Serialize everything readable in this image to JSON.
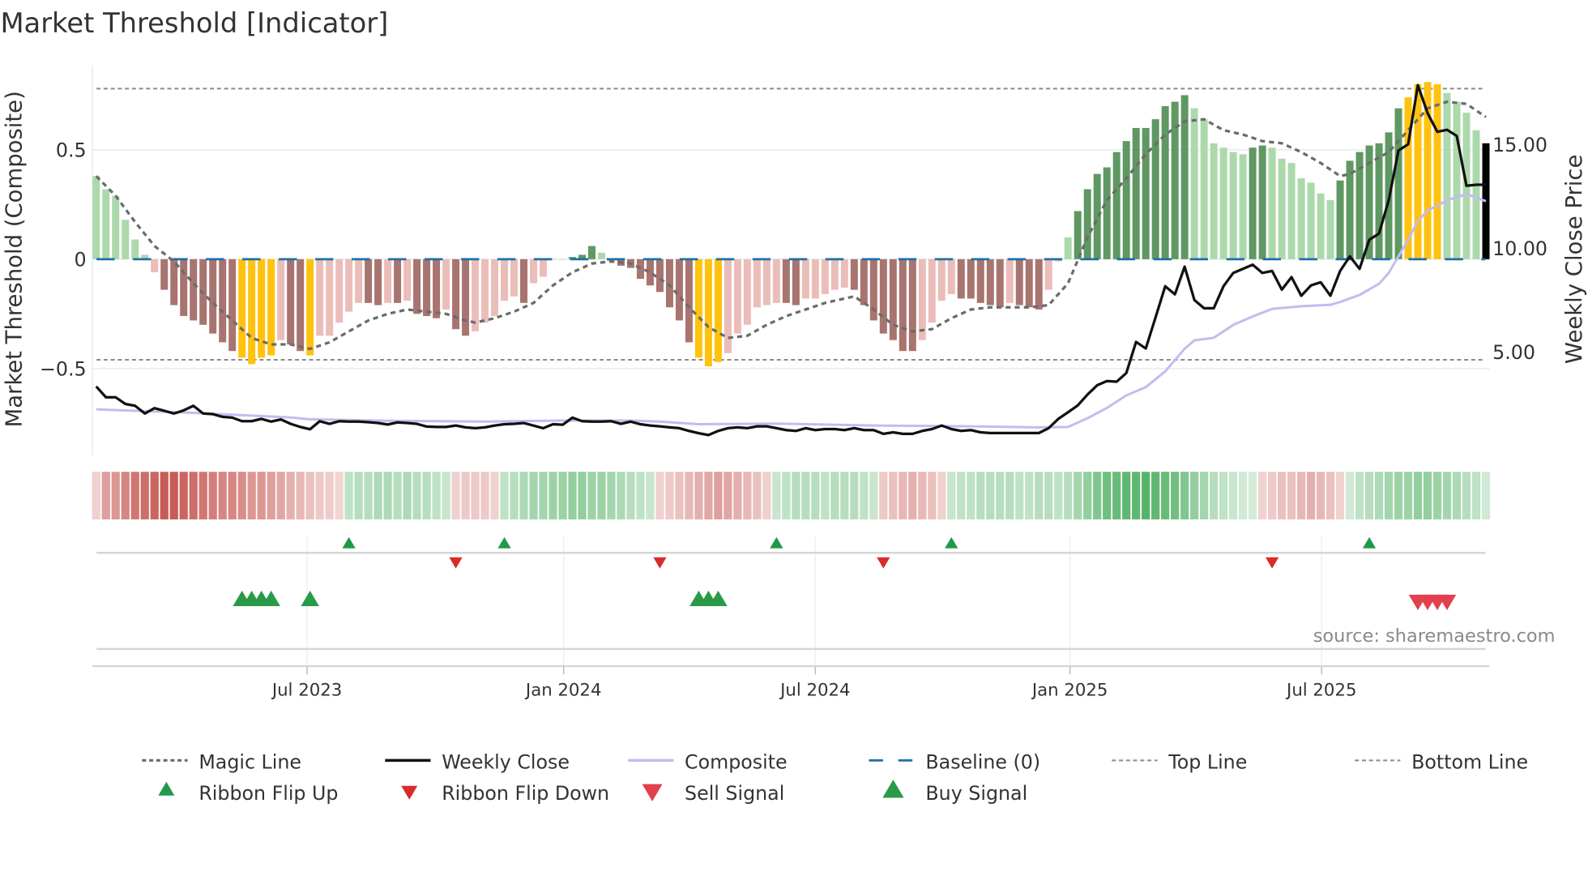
{
  "title": "Market Threshold [Indicator]",
  "source": "source: sharemaestro.com",
  "colors": {
    "lg": "#acd9ac",
    "dg": "#5f9862",
    "lr": "#ebbdb9",
    "dr": "#a8746f",
    "y": "#ffc20e",
    "magic": "#6b6b6b",
    "close": "#111111",
    "composite": "#c3bcee",
    "baseline": "#1f6fa8",
    "ribbon_red": "#c4504a",
    "ribbon_green": "#4aad5d",
    "flip_up": "#1f9a48",
    "flip_down": "#d92b2b",
    "sell": "#e2404f",
    "buy": "#2a9a48"
  },
  "chart_data": {
    "type": "bar",
    "title": "Market Threshold [Indicator]",
    "ylabel": "Market Threshold (Composite)",
    "y2label": "Weekly Close Price",
    "ylim": [
      -0.95,
      0.9
    ],
    "y2lim": [
      0,
      18
    ],
    "yticks": [
      {
        "v": 0.5,
        "label": "0.5"
      },
      {
        "v": 0,
        "label": "0"
      },
      {
        "v": -0.5,
        "label": "−0.5"
      }
    ],
    "y2ticks": [
      {
        "v": 15,
        "label": "15.00"
      },
      {
        "v": 10,
        "label": "10.00"
      },
      {
        "v": 5,
        "label": "5.00"
      }
    ],
    "x_unit": "week index",
    "xticks": [
      {
        "week": 21.7,
        "label": "Jul 2023"
      },
      {
        "week": 48.1,
        "label": "Jan 2024"
      },
      {
        "week": 74.0,
        "label": "Jul 2024"
      },
      {
        "week": 100.2,
        "label": "Jan 2025"
      },
      {
        "week": 126.1,
        "label": "Jul 2025"
      }
    ],
    "top_line": 0.78,
    "bottom_line": -0.46,
    "baseline": 0,
    "composite_bars": [
      0.38,
      0.32,
      0.29,
      0.18,
      0.09,
      0.02,
      -0.06,
      -0.14,
      -0.21,
      -0.26,
      -0.28,
      -0.3,
      -0.34,
      -0.38,
      -0.42,
      -0.45,
      -0.48,
      -0.45,
      -0.44,
      -0.37,
      -0.39,
      -0.42,
      -0.44,
      -0.35,
      -0.35,
      -0.29,
      -0.24,
      -0.2,
      -0.2,
      -0.21,
      -0.2,
      -0.2,
      -0.19,
      -0.25,
      -0.26,
      -0.27,
      -0.23,
      -0.32,
      -0.35,
      -0.33,
      -0.29,
      -0.26,
      -0.19,
      -0.17,
      -0.2,
      -0.11,
      -0.08,
      0,
      0,
      0.01,
      0.02,
      0.06,
      0.03,
      -0.01,
      -0.03,
      -0.04,
      -0.09,
      -0.12,
      -0.15,
      -0.22,
      -0.28,
      -0.38,
      -0.45,
      -0.49,
      -0.47,
      -0.43,
      -0.34,
      -0.3,
      -0.22,
      -0.21,
      -0.2,
      -0.2,
      -0.21,
      -0.18,
      -0.18,
      -0.16,
      -0.14,
      -0.13,
      -0.14,
      -0.21,
      -0.28,
      -0.34,
      -0.37,
      -0.42,
      -0.42,
      -0.37,
      -0.29,
      -0.19,
      -0.16,
      -0.18,
      -0.18,
      -0.2,
      -0.21,
      -0.22,
      -0.2,
      -0.21,
      -0.22,
      -0.23,
      -0.14,
      -0.01,
      0.1,
      0.22,
      0.32,
      0.39,
      0.42,
      0.49,
      0.54,
      0.6,
      0.6,
      0.64,
      0.7,
      0.72,
      0.75,
      0.69,
      0.64,
      0.53,
      0.51,
      0.49,
      0.48,
      0.51,
      0.52,
      0.51,
      0.46,
      0.44,
      0.37,
      0.35,
      0.3,
      0.27,
      0.36,
      0.45,
      0.49,
      0.52,
      0.53,
      0.58,
      0.69,
      0.74,
      0.8,
      0.81,
      0.8,
      0.76,
      0.72,
      0.67,
      0.59,
      0.53
    ],
    "bar_states": [
      "lg",
      "lg",
      "lg",
      "lg",
      "lg",
      "lg",
      "lr",
      "dr",
      "dr",
      "dr",
      "dr",
      "dr",
      "dr",
      "dr",
      "dr",
      "y",
      "y",
      "y",
      "y",
      "lr",
      "dr",
      "dr",
      "y",
      "lr",
      "lr",
      "lr",
      "lr",
      "lr",
      "dr",
      "dr",
      "lr",
      "dr",
      "lr",
      "dr",
      "dr",
      "dr",
      "lr",
      "dr",
      "dr",
      "lr",
      "lr",
      "lr",
      "lr",
      "lr",
      "dr",
      "lr",
      "lr",
      "lr",
      "lr",
      "dg",
      "dg",
      "dg",
      "lg",
      "lr",
      "dr",
      "dr",
      "dr",
      "dr",
      "dr",
      "dr",
      "dr",
      "dr",
      "y",
      "y",
      "y",
      "lr",
      "lr",
      "lr",
      "lr",
      "lr",
      "lr",
      "dr",
      "dr",
      "lr",
      "lr",
      "lr",
      "lr",
      "lr",
      "dr",
      "dr",
      "dr",
      "dr",
      "dr",
      "dr",
      "dr",
      "lr",
      "lr",
      "lr",
      "lr",
      "dr",
      "dr",
      "dr",
      "dr",
      "dr",
      "lr",
      "dr",
      "dr",
      "dr",
      "lr",
      "lr",
      "lg",
      "dg",
      "dg",
      "dg",
      "dg",
      "dg",
      "dg",
      "dg",
      "dg",
      "dg",
      "dg",
      "dg",
      "dg",
      "lg",
      "lg",
      "lg",
      "lg",
      "lg",
      "lg",
      "dg",
      "dg",
      "lg",
      "lg",
      "lg",
      "lg",
      "lg",
      "lg",
      "lg",
      "dg",
      "dg",
      "dg",
      "dg",
      "dg",
      "dg",
      "dg",
      "y",
      "y",
      "y",
      "y",
      "lg",
      "lg",
      "lg",
      "lg"
    ],
    "magic_line": [
      [
        0,
        0.38
      ],
      [
        2,
        0.29
      ],
      [
        4,
        0.17
      ],
      [
        6,
        0.06
      ],
      [
        8,
        -0.01
      ],
      [
        10,
        -0.11
      ],
      [
        12,
        -0.2
      ],
      [
        14,
        -0.28
      ],
      [
        16,
        -0.36
      ],
      [
        18,
        -0.39
      ],
      [
        20,
        -0.39
      ],
      [
        22,
        -0.41
      ],
      [
        24,
        -0.38
      ],
      [
        26,
        -0.33
      ],
      [
        28,
        -0.28
      ],
      [
        30,
        -0.25
      ],
      [
        32,
        -0.23
      ],
      [
        34,
        -0.24
      ],
      [
        36,
        -0.25
      ],
      [
        38,
        -0.28
      ],
      [
        39,
        -0.29
      ],
      [
        41,
        -0.27
      ],
      [
        43,
        -0.24
      ],
      [
        45,
        -0.2
      ],
      [
        47,
        -0.12
      ],
      [
        49,
        -0.06
      ],
      [
        51,
        -0.02
      ],
      [
        53,
        -0.01
      ],
      [
        55,
        -0.02
      ],
      [
        57,
        -0.06
      ],
      [
        59,
        -0.12
      ],
      [
        61,
        -0.22
      ],
      [
        63,
        -0.31
      ],
      [
        65,
        -0.36
      ],
      [
        67,
        -0.35
      ],
      [
        69,
        -0.3
      ],
      [
        71,
        -0.26
      ],
      [
        73,
        -0.23
      ],
      [
        75,
        -0.2
      ],
      [
        76,
        -0.19
      ],
      [
        78,
        -0.17
      ],
      [
        80,
        -0.23
      ],
      [
        82,
        -0.3
      ],
      [
        84,
        -0.33
      ],
      [
        86,
        -0.32
      ],
      [
        88,
        -0.27
      ],
      [
        90,
        -0.23
      ],
      [
        92,
        -0.22
      ],
      [
        96,
        -0.22
      ],
      [
        98,
        -0.21
      ],
      [
        100,
        -0.11
      ],
      [
        102,
        0.1
      ],
      [
        104,
        0.27
      ],
      [
        106,
        0.37
      ],
      [
        108,
        0.48
      ],
      [
        110,
        0.57
      ],
      [
        112,
        0.63
      ],
      [
        114,
        0.64
      ],
      [
        116,
        0.59
      ],
      [
        118,
        0.57
      ],
      [
        120,
        0.54
      ],
      [
        122,
        0.53
      ],
      [
        124,
        0.49
      ],
      [
        126,
        0.44
      ],
      [
        128,
        0.38
      ],
      [
        129,
        0.39
      ],
      [
        131,
        0.44
      ],
      [
        133,
        0.49
      ],
      [
        135,
        0.59
      ],
      [
        137,
        0.69
      ],
      [
        139,
        0.72
      ],
      [
        141,
        0.71
      ],
      [
        143,
        0.65
      ]
    ],
    "weekly_close": [
      3.33,
      2.81,
      2.81,
      2.49,
      2.4,
      2.03,
      2.29,
      2.16,
      2.03,
      2.18,
      2.4,
      2.03,
      2.0,
      1.87,
      1.83,
      1.66,
      1.66,
      1.77,
      1.64,
      1.74,
      1.53,
      1.38,
      1.27,
      1.66,
      1.53,
      1.66,
      1.64,
      1.64,
      1.61,
      1.57,
      1.5,
      1.6,
      1.57,
      1.53,
      1.4,
      1.38,
      1.38,
      1.45,
      1.36,
      1.32,
      1.36,
      1.45,
      1.51,
      1.53,
      1.57,
      1.45,
      1.32,
      1.51,
      1.49,
      1.83,
      1.66,
      1.64,
      1.64,
      1.66,
      1.53,
      1.64,
      1.51,
      1.45,
      1.41,
      1.36,
      1.32,
      1.19,
      1.08,
      0.99,
      1.19,
      1.32,
      1.36,
      1.32,
      1.41,
      1.41,
      1.32,
      1.23,
      1.19,
      1.32,
      1.23,
      1.28,
      1.28,
      1.23,
      1.32,
      1.23,
      1.23,
      1.05,
      1.12,
      1.05,
      1.05,
      1.19,
      1.28,
      1.45,
      1.28,
      1.19,
      1.23,
      1.12,
      1.09,
      1.09,
      1.09,
      1.09,
      1.09,
      1.09,
      1.32,
      1.77,
      2.09,
      2.42,
      2.94,
      3.39,
      3.59,
      3.56,
      3.98,
      5.48,
      5.16,
      6.65,
      8.16,
      7.77,
      9.1,
      7.5,
      7.1,
      7.1,
      8.16,
      8.8,
      9.0,
      9.2,
      8.8,
      8.9,
      8.0,
      8.6,
      7.7,
      8.2,
      8.35,
      7.7,
      8.9,
      9.6,
      9.0,
      10.4,
      10.7,
      12.3,
      14.7,
      15.0,
      17.85,
      16.5,
      15.6,
      15.7,
      15.4,
      13.0,
      13.05,
      13.05
    ],
    "composite_line": [
      [
        0,
        2.23
      ],
      [
        10,
        2.06
      ],
      [
        20,
        1.84
      ],
      [
        22,
        1.75
      ],
      [
        30,
        1.68
      ],
      [
        40,
        1.64
      ],
      [
        48,
        1.69
      ],
      [
        55,
        1.69
      ],
      [
        58,
        1.64
      ],
      [
        62,
        1.51
      ],
      [
        70,
        1.54
      ],
      [
        80,
        1.45
      ],
      [
        90,
        1.41
      ],
      [
        97,
        1.36
      ],
      [
        100,
        1.38
      ],
      [
        102,
        1.8
      ],
      [
        104,
        2.3
      ],
      [
        106,
        2.9
      ],
      [
        108,
        3.3
      ],
      [
        110,
        4.06
      ],
      [
        111,
        4.6
      ],
      [
        112,
        5.15
      ],
      [
        113,
        5.55
      ],
      [
        115,
        5.68
      ],
      [
        117,
        6.3
      ],
      [
        119,
        6.7
      ],
      [
        121,
        7.07
      ],
      [
        124,
        7.2
      ],
      [
        127,
        7.27
      ],
      [
        128,
        7.4
      ],
      [
        130,
        7.74
      ],
      [
        132,
        8.28
      ],
      [
        133,
        8.8
      ],
      [
        134,
        9.6
      ],
      [
        135,
        10.4
      ],
      [
        136,
        11.3
      ],
      [
        137,
        11.8
      ],
      [
        139,
        12.3
      ],
      [
        141,
        12.6
      ],
      [
        143,
        12.26
      ]
    ],
    "ribbon": [
      -0.15,
      -0.45,
      -0.5,
      -0.6,
      -0.7,
      -0.75,
      -0.8,
      -0.85,
      -0.85,
      -0.8,
      -0.75,
      -0.7,
      -0.65,
      -0.6,
      -0.6,
      -0.55,
      -0.5,
      -0.5,
      -0.45,
      -0.4,
      -0.35,
      -0.3,
      -0.25,
      -0.2,
      -0.18,
      -0.12,
      0.25,
      0.3,
      0.3,
      0.35,
      0.35,
      0.3,
      0.35,
      0.3,
      0.3,
      0.25,
      0.2,
      -0.15,
      -0.2,
      -0.2,
      -0.2,
      -0.15,
      0.25,
      0.3,
      0.35,
      0.4,
      0.4,
      0.45,
      0.45,
      0.5,
      0.5,
      0.45,
      0.45,
      0.4,
      0.35,
      0.3,
      0.25,
      0.2,
      -0.15,
      -0.2,
      -0.25,
      -0.3,
      -0.35,
      -0.4,
      -0.45,
      -0.4,
      -0.35,
      -0.3,
      -0.25,
      -0.15,
      0.2,
      0.25,
      0.3,
      0.3,
      0.3,
      0.25,
      0.3,
      0.3,
      0.3,
      0.25,
      0.2,
      -0.2,
      -0.25,
      -0.3,
      -0.35,
      -0.3,
      -0.25,
      -0.15,
      0.2,
      0.25,
      0.25,
      0.3,
      0.3,
      0.3,
      0.3,
      0.25,
      0.25,
      0.3,
      0.3,
      0.25,
      0.3,
      0.4,
      0.5,
      0.6,
      0.7,
      0.75,
      0.8,
      0.8,
      0.85,
      0.8,
      0.75,
      0.7,
      0.6,
      0.5,
      0.4,
      0.3,
      0.25,
      0.2,
      0.15,
      0.12,
      -0.15,
      -0.2,
      -0.25,
      -0.25,
      -0.3,
      -0.35,
      -0.3,
      -0.25,
      -0.15,
      0.15,
      0.25,
      0.3,
      0.35,
      0.4,
      0.45,
      0.45,
      0.5,
      0.5,
      0.45,
      0.4,
      0.35,
      0.3,
      0.25,
      0.15
    ],
    "ribbon_flip_up": [
      26,
      42,
      70,
      88,
      131
    ],
    "ribbon_flip_down": [
      37,
      58,
      81,
      121
    ],
    "buy_signals": [
      15,
      16,
      17,
      18,
      22,
      62,
      63,
      64
    ],
    "sell_signals": [
      136,
      137,
      138,
      139
    ],
    "legend": {
      "placement": "bottom",
      "items": [
        {
          "key": "magic",
          "label": "Magic Line"
        },
        {
          "key": "close",
          "label": "Weekly Close"
        },
        {
          "key": "composite",
          "label": "Composite"
        },
        {
          "key": "baseline",
          "label": "Baseline (0)"
        },
        {
          "key": "top",
          "label": "Top Line"
        },
        {
          "key": "bottom",
          "label": "Bottom Line"
        },
        {
          "key": "flip_up",
          "label": "Ribbon Flip Up"
        },
        {
          "key": "flip_down",
          "label": "Ribbon Flip Down"
        },
        {
          "key": "sell",
          "label": "Sell Signal"
        },
        {
          "key": "buy",
          "label": "Buy Signal"
        }
      ]
    }
  }
}
